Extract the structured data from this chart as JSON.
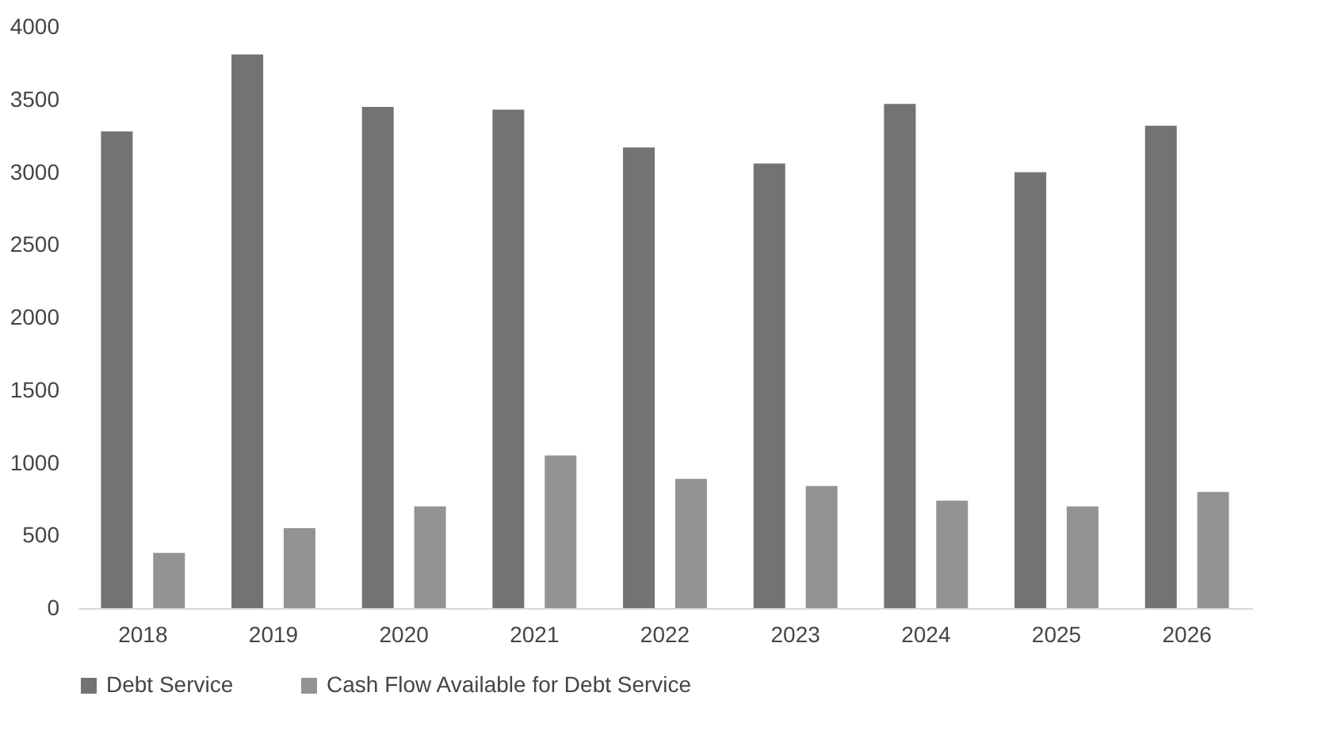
{
  "chart_data": {
    "type": "bar",
    "categories": [
      "2018",
      "2019",
      "2020",
      "2021",
      "2022",
      "2023",
      "2024",
      "2025",
      "2026"
    ],
    "series": [
      {
        "name": "Debt Service",
        "color": "#737373",
        "values": [
          3280,
          3810,
          3450,
          3430,
          3170,
          3060,
          3470,
          3000,
          3320
        ]
      },
      {
        "name": "Cash Flow Available for Debt Service",
        "color": "#939393",
        "values": [
          380,
          550,
          700,
          1050,
          890,
          840,
          740,
          700,
          800
        ]
      }
    ],
    "ylim": [
      0,
      4000
    ],
    "yticks": [
      0,
      500,
      1000,
      1500,
      2000,
      2500,
      3000,
      3500,
      4000
    ],
    "grid": false,
    "legend": "bottom"
  }
}
